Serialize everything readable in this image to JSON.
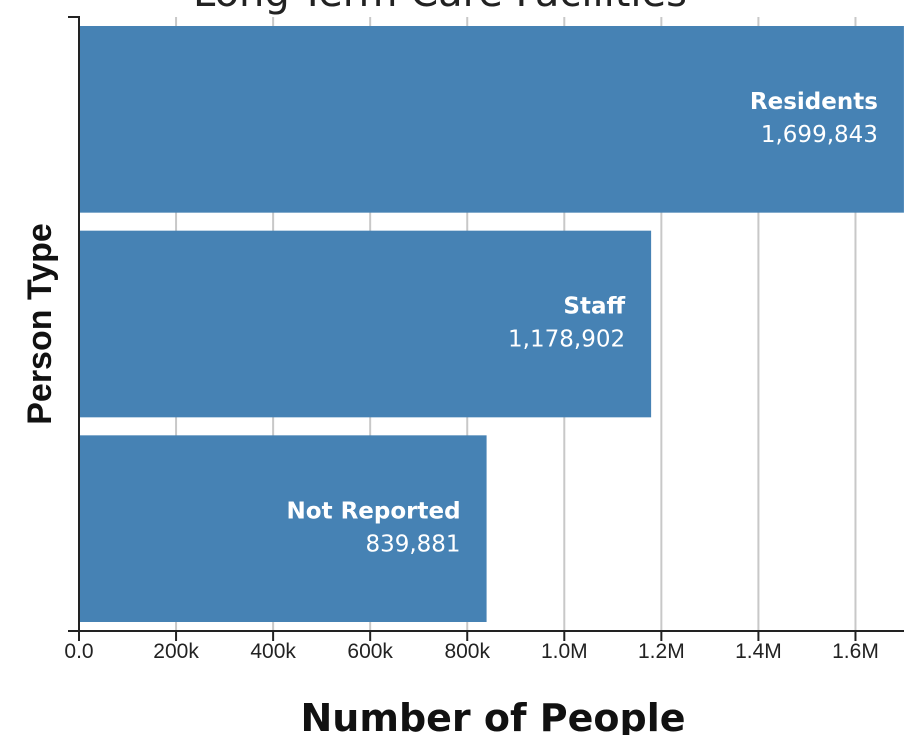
{
  "chart_data": {
    "type": "bar",
    "orientation": "horizontal",
    "title": "Long-Term Care Facilities",
    "xlabel": "Number of People",
    "ylabel": "Person Type",
    "categories": [
      "Residents",
      "Staff",
      "Not Reported"
    ],
    "values": [
      1699843,
      1178902,
      839881
    ],
    "value_labels": [
      "1,699,843",
      "1,178,902",
      "839,881"
    ],
    "xlim": [
      0,
      1700000
    ],
    "x_ticks": [
      0,
      200000,
      400000,
      600000,
      800000,
      1000000,
      1200000,
      1400000,
      1600000
    ],
    "x_tick_labels": [
      "0.0",
      "200k",
      "400k",
      "600k",
      "800k",
      "1.0M",
      "1.2M",
      "1.4M",
      "1.6M"
    ],
    "grid": true,
    "bar_color": "#4682b4"
  }
}
